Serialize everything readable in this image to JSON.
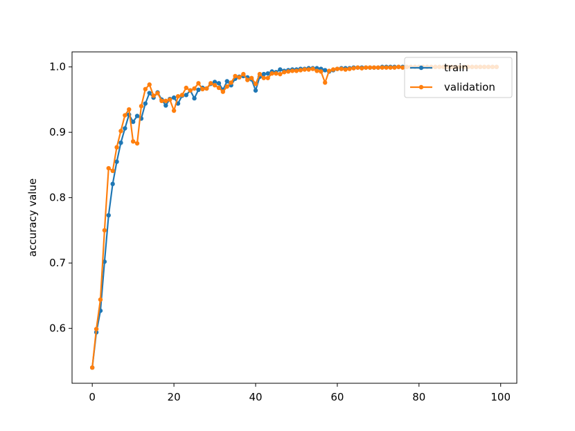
{
  "chart_data": {
    "type": "line",
    "title": "",
    "xlabel": "",
    "ylabel": "accuracy value",
    "xlim": [
      -4.95,
      103.95
    ],
    "ylim": [
      0.516,
      1.023
    ],
    "xticks": [
      0,
      20,
      40,
      60,
      80,
      100
    ],
    "yticks": [
      0.6,
      0.7,
      0.8,
      0.9,
      1.0
    ],
    "xtick_labels": [
      "0",
      "20",
      "40",
      "60",
      "80",
      "100"
    ],
    "ytick_labels": [
      "0.6",
      "0.7",
      "0.8",
      "0.9",
      "1.0"
    ],
    "grid": false,
    "legend_position": "top-right",
    "series": [
      {
        "name": "train",
        "color": "#1f77b4",
        "x": [
          0,
          1,
          2,
          3,
          4,
          5,
          6,
          7,
          8,
          9,
          10,
          11,
          12,
          13,
          14,
          15,
          16,
          17,
          18,
          19,
          20,
          21,
          22,
          23,
          24,
          25,
          26,
          27,
          28,
          29,
          30,
          31,
          32,
          33,
          34,
          35,
          36,
          37,
          38,
          39,
          40,
          41,
          42,
          43,
          44,
          45,
          46,
          47,
          48,
          49,
          50,
          51,
          52,
          53,
          54,
          55,
          56,
          57,
          58,
          59,
          60,
          61,
          62,
          63,
          64,
          65,
          66,
          67,
          68,
          69,
          70,
          71,
          72,
          73,
          74,
          75,
          76,
          77,
          78,
          79,
          80,
          81,
          82,
          83,
          84,
          85,
          86,
          87,
          88,
          89,
          90,
          91,
          92,
          93,
          94,
          95,
          96,
          97,
          98,
          99
        ],
        "values": [
          0.54,
          0.594,
          0.627,
          0.702,
          0.773,
          0.821,
          0.855,
          0.884,
          0.906,
          0.927,
          0.916,
          0.925,
          0.921,
          0.944,
          0.96,
          0.953,
          0.961,
          0.95,
          0.941,
          0.951,
          0.953,
          0.944,
          0.956,
          0.957,
          0.964,
          0.952,
          0.965,
          0.968,
          0.967,
          0.974,
          0.977,
          0.975,
          0.965,
          0.978,
          0.972,
          0.982,
          0.985,
          0.986,
          0.984,
          0.981,
          0.964,
          0.985,
          0.989,
          0.99,
          0.993,
          0.992,
          0.996,
          0.994,
          0.995,
          0.996,
          0.996,
          0.997,
          0.997,
          0.998,
          0.998,
          0.998,
          0.997,
          0.995,
          0.993,
          0.995,
          0.997,
          0.998,
          0.998,
          0.998,
          0.999,
          0.999,
          0.999,
          0.999,
          0.999,
          0.999,
          0.999,
          1.0,
          1.0,
          1.0,
          1.0,
          1.0,
          1.0,
          1.0,
          1.0,
          1.0,
          1.0,
          1.0,
          1.0,
          1.0,
          1.0,
          1.0,
          1.0,
          1.0,
          1.0,
          1.0,
          1.0,
          1.0,
          1.0,
          1.0,
          1.0,
          1.0,
          1.0,
          1.0,
          1.0,
          1.0
        ]
      },
      {
        "name": "validation",
        "color": "#ff7f0e",
        "x": [
          0,
          1,
          2,
          3,
          4,
          5,
          6,
          7,
          8,
          9,
          10,
          11,
          12,
          13,
          14,
          15,
          16,
          17,
          18,
          19,
          20,
          21,
          22,
          23,
          24,
          25,
          26,
          27,
          28,
          29,
          30,
          31,
          32,
          33,
          34,
          35,
          36,
          37,
          38,
          39,
          40,
          41,
          42,
          43,
          44,
          45,
          46,
          47,
          48,
          49,
          50,
          51,
          52,
          53,
          54,
          55,
          56,
          57,
          58,
          59,
          60,
          61,
          62,
          63,
          64,
          65,
          66,
          67,
          68,
          69,
          70,
          71,
          72,
          73,
          74,
          75,
          76,
          77,
          78,
          79,
          80,
          81,
          82,
          83,
          84,
          85,
          86,
          87,
          88,
          89,
          90,
          91,
          92,
          93,
          94,
          95,
          96,
          97,
          98,
          99
        ],
        "values": [
          0.54,
          0.599,
          0.644,
          0.75,
          0.845,
          0.841,
          0.877,
          0.902,
          0.926,
          0.935,
          0.886,
          0.883,
          0.94,
          0.966,
          0.973,
          0.956,
          0.96,
          0.948,
          0.948,
          0.95,
          0.933,
          0.955,
          0.957,
          0.968,
          0.964,
          0.967,
          0.975,
          0.966,
          0.967,
          0.975,
          0.972,
          0.968,
          0.962,
          0.97,
          0.976,
          0.986,
          0.984,
          0.989,
          0.98,
          0.983,
          0.974,
          0.989,
          0.983,
          0.983,
          0.99,
          0.99,
          0.989,
          0.992,
          0.993,
          0.994,
          0.994,
          0.995,
          0.996,
          0.996,
          0.997,
          0.994,
          0.993,
          0.976,
          0.994,
          0.996,
          0.997,
          0.997,
          0.996,
          0.997,
          0.998,
          0.999,
          0.998,
          0.999,
          0.999,
          0.999,
          0.999,
          0.999,
          0.999,
          0.999,
          0.999,
          1.0,
          0.999,
          1.0,
          1.0,
          1.0,
          1.0,
          1.0,
          1.0,
          1.0,
          1.0,
          1.0,
          1.0,
          1.0,
          1.0,
          1.0,
          1.0,
          1.0,
          1.0,
          1.0,
          1.0,
          1.0,
          1.0,
          1.0,
          1.0,
          1.0
        ]
      }
    ]
  }
}
